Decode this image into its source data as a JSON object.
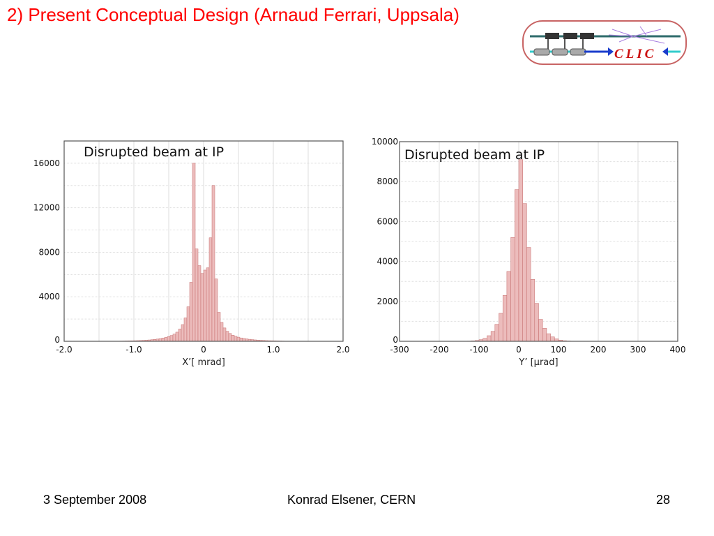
{
  "slide": {
    "title": "2) Present Conceptual Design (Arnaud Ferrari, Uppsala)",
    "logo_text": "CLIC",
    "footer": {
      "date": "3 September 2008",
      "author": "Konrad Elsener, CERN",
      "page": "28"
    }
  },
  "colors": {
    "title": "#ff0000",
    "bar_fill": "#ecbcbc",
    "bar_stroke": "#c46a6a",
    "frame": "#555555"
  },
  "chart_data": [
    {
      "type": "bar",
      "title": "Disrupted beam at IP",
      "xlabel": "X’[ mrad]",
      "ylabel": "",
      "xlim": [
        -2.0,
        2.0
      ],
      "ylim": [
        0,
        18000
      ],
      "grid": true,
      "xticks": [
        -2.0,
        -1.0,
        0,
        1.0,
        2.0
      ],
      "xtick_labels": [
        "-2.0",
        "-1.0",
        "0",
        "1.0",
        "2.0"
      ],
      "yticks": [
        0,
        4000,
        8000,
        12000,
        16000
      ],
      "ytick_labels": [
        "0",
        "4000",
        "8000",
        "12000",
        "16000"
      ],
      "bin_width": 0.04,
      "x": [
        -1.18,
        -1.14,
        -1.1,
        -1.06,
        -1.02,
        -0.98,
        -0.94,
        -0.9,
        -0.86,
        -0.82,
        -0.78,
        -0.74,
        -0.7,
        -0.66,
        -0.62,
        -0.58,
        -0.54,
        -0.5,
        -0.46,
        -0.42,
        -0.38,
        -0.34,
        -0.3,
        -0.26,
        -0.22,
        -0.18,
        -0.14,
        -0.1,
        -0.06,
        -0.02,
        0.02,
        0.06,
        0.1,
        0.14,
        0.18,
        0.22,
        0.26,
        0.3,
        0.34,
        0.38,
        0.42,
        0.46,
        0.5,
        0.54,
        0.58,
        0.62,
        0.66,
        0.7,
        0.74,
        0.78,
        0.82,
        0.86,
        0.9,
        0.94,
        0.98,
        1.02,
        1.06,
        1.1,
        1.14,
        1.18
      ],
      "values": [
        20,
        25,
        30,
        35,
        40,
        50,
        60,
        70,
        85,
        100,
        120,
        140,
        170,
        200,
        240,
        290,
        350,
        420,
        520,
        650,
        820,
        1100,
        1500,
        2100,
        3100,
        5300,
        16000,
        8300,
        6800,
        6100,
        6400,
        6600,
        9300,
        14000,
        5600,
        2600,
        1700,
        1200,
        900,
        700,
        550,
        450,
        370,
        300,
        250,
        210,
        180,
        150,
        125,
        105,
        90,
        75,
        62,
        52,
        44,
        36,
        30,
        25,
        20,
        16
      ]
    },
    {
      "type": "bar",
      "title": "Disrupted beam at IP",
      "xlabel": "Y’ [μrad]",
      "ylabel": "",
      "xlim": [
        -300,
        400
      ],
      "ylim": [
        0,
        10000
      ],
      "grid": true,
      "xticks": [
        -300,
        -200,
        -100,
        0,
        100,
        200,
        300,
        400
      ],
      "xtick_labels": [
        "-300",
        "-200",
        "-100",
        "0",
        "100",
        "200",
        "300",
        "400"
      ],
      "yticks": [
        0,
        2000,
        4000,
        6000,
        8000,
        10000
      ],
      "ytick_labels": [
        "0",
        "2000",
        "4000",
        "6000",
        "8000",
        "10000"
      ],
      "bin_width": 10,
      "x": [
        -125,
        -115,
        -105,
        -95,
        -85,
        -75,
        -65,
        -55,
        -45,
        -35,
        -25,
        -15,
        -5,
        5,
        15,
        25,
        35,
        45,
        55,
        65,
        75,
        85,
        95,
        105,
        115,
        125
      ],
      "values": [
        10,
        20,
        40,
        80,
        150,
        280,
        500,
        850,
        1400,
        2300,
        3500,
        5200,
        7600,
        9100,
        6900,
        4700,
        3100,
        1900,
        1100,
        650,
        380,
        220,
        120,
        60,
        30,
        15
      ]
    }
  ]
}
